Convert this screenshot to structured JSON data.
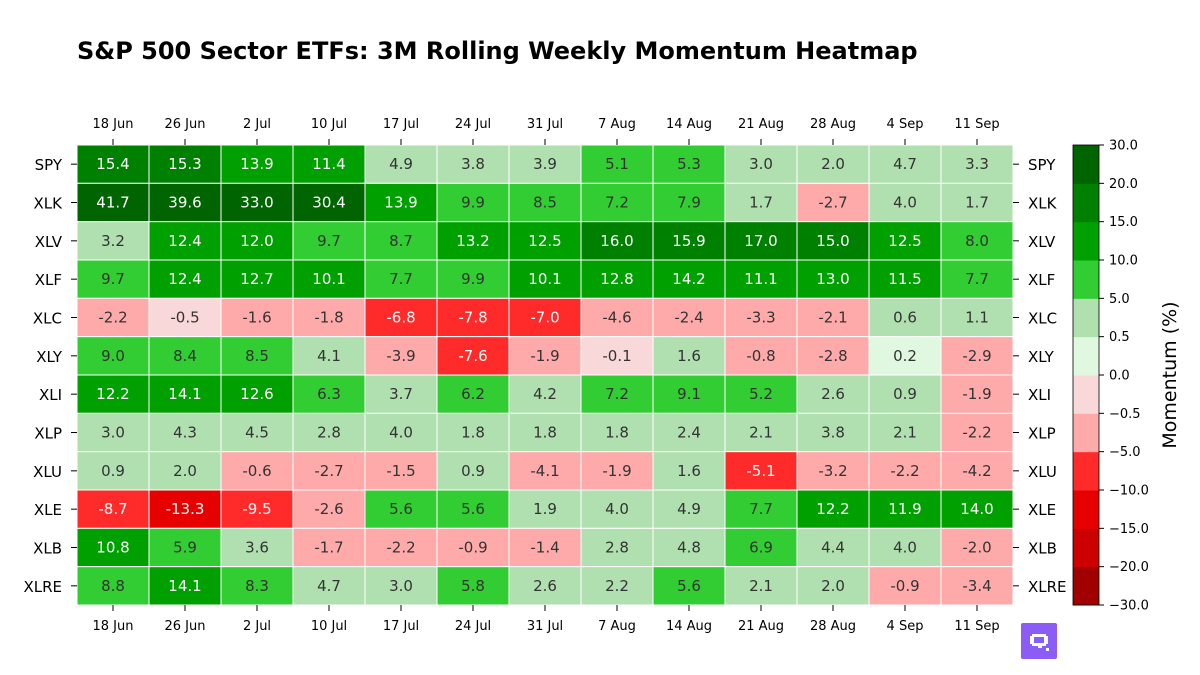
{
  "chart_data": {
    "type": "heatmap",
    "title": "S&P 500 Sector ETFs: 3M Rolling Weekly Momentum Heatmap",
    "columns": [
      "18 Jun",
      "26 Jun",
      "2 Jul",
      "10 Jul",
      "17 Jul",
      "24 Jul",
      "31 Jul",
      "7 Aug",
      "14 Aug",
      "21 Aug",
      "28 Aug",
      "4 Sep",
      "11 Sep"
    ],
    "rows": [
      "SPY",
      "XLK",
      "XLV",
      "XLF",
      "XLC",
      "XLY",
      "XLI",
      "XLP",
      "XLU",
      "XLE",
      "XLB",
      "XLRE"
    ],
    "values": [
      [
        15.4,
        15.3,
        13.9,
        11.4,
        4.9,
        3.8,
        3.9,
        5.1,
        5.3,
        3.0,
        2.0,
        4.7,
        3.3
      ],
      [
        41.7,
        39.6,
        33.0,
        30.4,
        13.9,
        9.9,
        8.5,
        7.2,
        7.9,
        1.7,
        -2.7,
        4.0,
        1.7
      ],
      [
        3.2,
        12.4,
        12.0,
        9.7,
        8.7,
        13.2,
        12.5,
        16.0,
        15.9,
        17.0,
        15.0,
        12.5,
        8.0
      ],
      [
        9.7,
        12.4,
        12.7,
        10.1,
        7.7,
        9.9,
        10.1,
        12.8,
        14.2,
        11.1,
        13.0,
        11.5,
        7.7
      ],
      [
        -2.2,
        -0.5,
        -1.6,
        -1.8,
        -6.8,
        -7.8,
        -7.0,
        -4.6,
        -2.4,
        -3.3,
        -2.1,
        0.6,
        1.1
      ],
      [
        9.0,
        8.4,
        8.5,
        4.1,
        -3.9,
        -7.6,
        -1.9,
        -0.1,
        1.6,
        -0.8,
        -2.8,
        0.2,
        -2.9
      ],
      [
        12.2,
        14.1,
        12.6,
        6.3,
        3.7,
        6.2,
        4.2,
        7.2,
        9.1,
        5.2,
        2.6,
        0.9,
        -1.9
      ],
      [
        3.0,
        4.3,
        4.5,
        2.8,
        4.0,
        1.8,
        1.8,
        1.8,
        2.4,
        2.1,
        3.8,
        2.1,
        -2.2
      ],
      [
        0.9,
        2.0,
        -0.6,
        -2.7,
        -1.5,
        0.9,
        -4.1,
        -1.9,
        1.6,
        -5.1,
        -3.2,
        -2.2,
        -4.2
      ],
      [
        -8.7,
        -13.3,
        -9.5,
        -2.6,
        5.6,
        5.6,
        1.9,
        4.0,
        4.9,
        7.7,
        12.2,
        11.9,
        14.0
      ],
      [
        10.8,
        5.9,
        3.6,
        -1.7,
        -2.2,
        -0.9,
        -1.4,
        2.8,
        4.8,
        6.9,
        4.4,
        4.0,
        -2.0
      ],
      [
        8.8,
        14.1,
        8.3,
        4.7,
        3.0,
        5.8,
        2.6,
        2.2,
        5.6,
        2.1,
        2.0,
        -0.9,
        -3.4
      ]
    ],
    "value_format": "one decimal",
    "colorbar": {
      "label": "Momentum (%)",
      "boundaries": [
        -30.0,
        -20.0,
        -15.0,
        -10.0,
        -5.0,
        -0.5,
        0.0,
        0.5,
        5.0,
        10.0,
        15.0,
        20.0,
        30.0
      ],
      "tick_labels": [
        "−30.0",
        "−20.0",
        "−15.0",
        "−10.0",
        "−5.0",
        "−0.5",
        "0.0",
        "0.5",
        "5.0",
        "10.0",
        "15.0",
        "20.0",
        "30.0"
      ],
      "colors": [
        "#a00000",
        "#cc0000",
        "#e60000",
        "#ff2a2a",
        "#ffaaaa",
        "#f8d8d8",
        "#e0f8e0",
        "#b0e0b0",
        "#32cd32",
        "#00a000",
        "#008000",
        "#006400"
      ]
    },
    "x_ticks_top": true,
    "x_ticks_bottom": true,
    "y_ticks_left": true,
    "y_ticks_right": true,
    "grid_lines": "white",
    "text_color_light": "#ffffff",
    "text_color_dark": "#333333"
  },
  "logo": {
    "name": "brand-logo-icon",
    "color": "#8b5cf6"
  }
}
